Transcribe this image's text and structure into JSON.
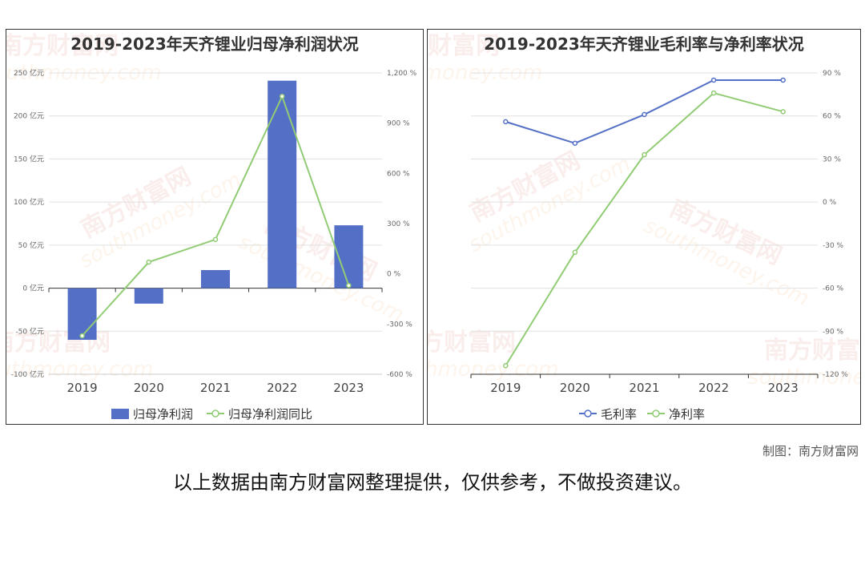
{
  "watermark": {
    "brand": "南方财富网",
    "site": "southmoney.com"
  },
  "colors": {
    "bar": "#5470c6",
    "green": "#91cc75",
    "gross": "#5470c6",
    "grid": "#e0e0e0",
    "axis": "#333333"
  },
  "chart_data": [
    {
      "type": "bar",
      "title": "2019-2023年天齐锂业归母净利润状况",
      "categories": [
        "2019",
        "2020",
        "2021",
        "2022",
        "2023"
      ],
      "series": [
        {
          "name": "归母净利润",
          "type": "bar",
          "axis": "left",
          "values": [
            -60,
            -18,
            21,
            241,
            73
          ]
        },
        {
          "name": "归母净利润同比",
          "type": "line",
          "axis": "right",
          "values": [
            -370,
            70,
            205,
            1060,
            -70
          ]
        }
      ],
      "left_axis": {
        "ticks": [
          250,
          200,
          150,
          100,
          50,
          0,
          -50,
          -100
        ],
        "tick_labels": [
          "250 亿元",
          "200 亿元",
          "150 亿元",
          "100 亿元",
          "50 亿元",
          "0 亿元",
          "-50 亿元",
          "-100 亿元"
        ],
        "ylim": [
          -100,
          250
        ]
      },
      "right_axis": {
        "ticks": [
          1200,
          900,
          600,
          300,
          0,
          -300,
          -600
        ],
        "tick_labels": [
          "1,200 %",
          "900 %",
          "600 %",
          "300 %",
          "0 %",
          "-300 %",
          "-600 %"
        ],
        "ylim": [
          -600,
          1200
        ]
      },
      "legend": [
        "归母净利润",
        "归母净利润同比"
      ],
      "legend_position": "bottom"
    },
    {
      "type": "line",
      "title": "2019-2023年天齐锂业毛利率与净利率状况",
      "categories": [
        "2019",
        "2020",
        "2021",
        "2022",
        "2023"
      ],
      "series": [
        {
          "name": "毛利率",
          "values": [
            56,
            41,
            61,
            85,
            85
          ]
        },
        {
          "name": "净利率",
          "values": [
            -114,
            -35,
            33,
            76,
            63
          ]
        }
      ],
      "right_axis": {
        "ticks": [
          90,
          60,
          30,
          0,
          -30,
          -60,
          -90,
          -120
        ],
        "tick_labels": [
          "90 %",
          "60 %",
          "30 %",
          "0 %",
          "-30 %",
          "-60 %",
          "-90 %",
          "-120 %"
        ],
        "ylim": [
          -120,
          90
        ]
      },
      "legend": [
        "毛利率",
        "净利率"
      ],
      "legend_position": "bottom"
    }
  ],
  "footer": {
    "credit": "制图：南方财富网",
    "disclaimer": "以上数据由南方财富网整理提供，仅供参考，不做投资建议。"
  }
}
